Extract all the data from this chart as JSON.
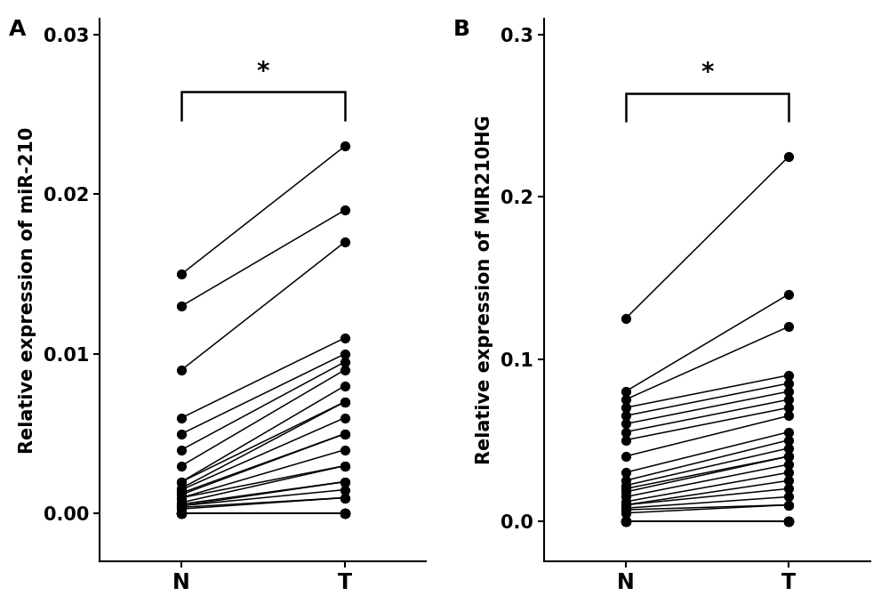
{
  "plot1": {
    "ylabel": "Relative expression of miR-210",
    "xtick_labels": [
      "N",
      "T"
    ],
    "ylim": [
      -0.003,
      0.031
    ],
    "yticks": [
      0.0,
      0.01,
      0.02,
      0.03
    ],
    "pairs_N": [
      0.0,
      0.0,
      0.0,
      0.0,
      0.0,
      0.0,
      0.0,
      0.0,
      0.0,
      0.0,
      0.0,
      0.0,
      0.0003,
      0.0004,
      0.0005,
      0.0005,
      0.0006,
      0.0007,
      0.001,
      0.001,
      0.0012,
      0.0013,
      0.0015,
      0.0016,
      0.002,
      0.002,
      0.003,
      0.004,
      0.005,
      0.006,
      0.009,
      0.013,
      0.015
    ],
    "pairs_T": [
      0.0,
      0.0,
      0.0,
      0.0,
      0.0,
      0.0,
      0.0,
      0.0,
      0.0,
      0.0,
      0.0,
      0.0,
      0.001,
      0.001,
      0.0015,
      0.002,
      0.002,
      0.003,
      0.003,
      0.004,
      0.005,
      0.005,
      0.006,
      0.007,
      0.007,
      0.008,
      0.009,
      0.0095,
      0.01,
      0.011,
      0.017,
      0.019,
      0.023
    ]
  },
  "plot2": {
    "ylabel": "Relative expression of MIR210HG",
    "xtick_labels": [
      "N",
      "T"
    ],
    "ylim": [
      -0.025,
      0.31
    ],
    "yticks": [
      0.0,
      0.1,
      0.2,
      0.3
    ],
    "pairs_N": [
      0.0,
      0.0,
      0.0,
      0.0,
      0.0,
      0.0,
      0.0,
      0.0,
      0.0,
      0.0,
      0.0,
      0.0,
      0.005,
      0.007,
      0.008,
      0.01,
      0.01,
      0.012,
      0.015,
      0.018,
      0.02,
      0.022,
      0.025,
      0.03,
      0.04,
      0.05,
      0.055,
      0.06,
      0.065,
      0.07,
      0.075,
      0.08,
      0.125
    ],
    "pairs_T": [
      0.0,
      0.0,
      0.0,
      0.0,
      0.0,
      0.0,
      0.0,
      0.0,
      0.0,
      0.0,
      0.0,
      0.0,
      0.01,
      0.01,
      0.015,
      0.02,
      0.025,
      0.03,
      0.035,
      0.04,
      0.04,
      0.045,
      0.05,
      0.055,
      0.065,
      0.07,
      0.075,
      0.08,
      0.085,
      0.09,
      0.12,
      0.14,
      0.225
    ]
  },
  "dot_color": "#000000",
  "line_color": "#000000",
  "dot_size": 50,
  "line_width": 1.1,
  "significance_text": "*",
  "background_color": "#ffffff",
  "spine_color": "#000000",
  "bracket_star_fontsize": 20,
  "ylabel_fontsize": 15,
  "tick_fontsize": 15,
  "xtick_fontsize": 17
}
